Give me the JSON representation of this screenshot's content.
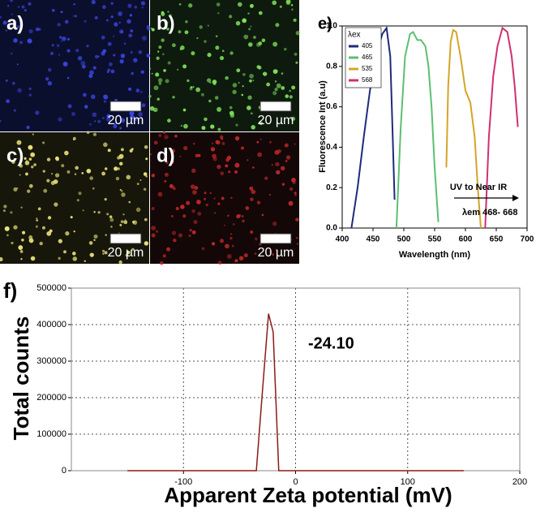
{
  "panels": [
    {
      "label": "a)",
      "scale_bar": "20 µm"
    },
    {
      "label": "b)",
      "scale_bar": "20 µm"
    },
    {
      "label": "c)",
      "scale_bar": "20 µm"
    },
    {
      "label": "d)",
      "scale_bar": "20 µm"
    }
  ],
  "chart_data": [
    {
      "type": "line",
      "panel_label": "e)",
      "x_label": "Wavelength (nm)",
      "y_label": "Fluorescence Int (a.u)",
      "legend_title": "λex",
      "legend": "top-left",
      "annotations": [
        "UV to Near IR",
        "λem 468- 668"
      ],
      "xlim": [
        400,
        700
      ],
      "xticks": [
        400,
        450,
        500,
        550,
        600,
        650,
        700
      ],
      "ylim": [
        0,
        1
      ],
      "yticks": [
        {
          "value": 0,
          "label": "0.0"
        },
        {
          "value": 0.2,
          "label": "0.2"
        },
        {
          "value": 0.4,
          "label": "0.4"
        },
        {
          "value": 0.6,
          "label": "0.6"
        },
        {
          "value": 0.8,
          "label": "0.8"
        },
        {
          "value": 1,
          "label": "1.0"
        }
      ],
      "grid": false,
      "series": [
        {
          "name": "405",
          "color": "#1f2a7a",
          "x": [
            415,
            425,
            435,
            445,
            455,
            465,
            472,
            478,
            482,
            485
          ],
          "values": [
            0,
            0.2,
            0.45,
            0.68,
            0.85,
            0.96,
            0.99,
            0.85,
            0.45,
            0.14
          ]
        },
        {
          "name": "465",
          "color": "#5cbf73",
          "x": [
            488,
            495,
            502,
            510,
            515,
            522,
            528,
            535,
            540,
            545,
            550,
            556
          ],
          "values": [
            0,
            0.5,
            0.85,
            0.96,
            0.97,
            0.93,
            0.93,
            0.9,
            0.8,
            0.6,
            0.3,
            0.03
          ]
        },
        {
          "name": "535",
          "color": "#d4a52a",
          "x": [
            569,
            572,
            576,
            580,
            585,
            592,
            600,
            608,
            615,
            620,
            625
          ],
          "values": [
            0.3,
            0.7,
            0.92,
            0.98,
            0.97,
            0.85,
            0.68,
            0.62,
            0.45,
            0.2,
            0
          ]
        },
        {
          "name": "568",
          "color": "#d0306f",
          "x": [
            632,
            638,
            645,
            652,
            660,
            668,
            675,
            680,
            685
          ],
          "values": [
            0,
            0.45,
            0.75,
            0.9,
            0.99,
            0.97,
            0.85,
            0.7,
            0.5
          ]
        }
      ]
    },
    {
      "type": "line",
      "panel_label": "f)",
      "x_label": "Apparent Zeta potential (mV)",
      "y_label": "Total counts",
      "annotations": [
        "-24.10"
      ],
      "xlim": [
        -200,
        200
      ],
      "xticks": [
        -100,
        0,
        100,
        200
      ],
      "ylim": [
        0,
        500000
      ],
      "yticks": [
        0,
        100000,
        200000,
        300000,
        400000,
        500000
      ],
      "grid": true,
      "series": [
        {
          "name": null,
          "color": "#8b1a1a",
          "x": [
            -150,
            -35,
            -30,
            -24.1,
            -20,
            -15,
            150
          ],
          "values": [
            0,
            0,
            200000,
            430000,
            380000,
            0,
            0
          ]
        }
      ]
    }
  ]
}
